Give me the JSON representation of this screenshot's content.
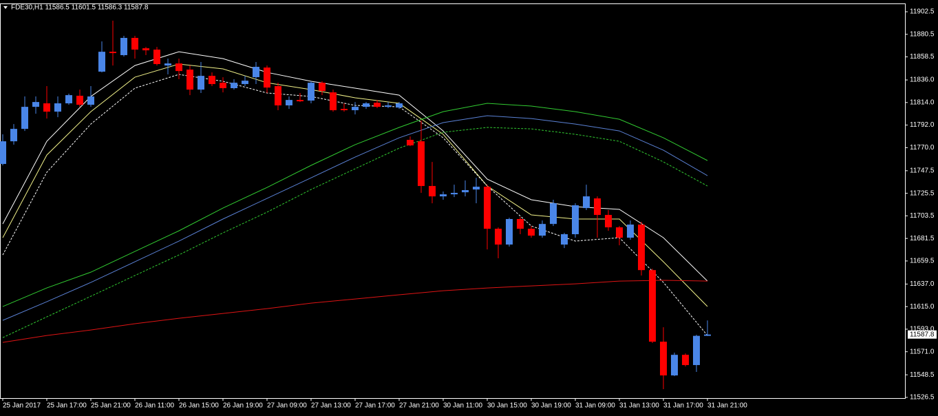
{
  "chart_data": {
    "type": "candlestick",
    "title": "FDE30,H1  11586.5 11601.5 11586.3 11587.8",
    "categories": [
      "25 Jan 2017",
      null,
      null,
      null,
      "25 Jan 17:00",
      null,
      null,
      null,
      "25 Jan 21:00",
      null,
      null,
      null,
      "26 Jan 11:00",
      null,
      null,
      null,
      "26 Jan 15:00",
      null,
      null,
      null,
      "26 Jan 19:00",
      null,
      null,
      null,
      "27 Jan 09:00",
      null,
      null,
      null,
      "27 Jan 13:00",
      null,
      null,
      null,
      "27 Jan 17:00",
      null,
      null,
      null,
      "27 Jan 21:00",
      null,
      null,
      null,
      "30 Jan 11:00",
      null,
      null,
      null,
      "30 Jan 15:00",
      null,
      null,
      null,
      "30 Jan 19:00",
      null,
      null,
      null,
      "31 Jan 09:00",
      null,
      null,
      null,
      "31 Jan 13:00",
      null,
      null,
      null,
      "31 Jan 17:00",
      null,
      null,
      null,
      "31 Jan 21:00"
    ],
    "open": [
      11754.1,
      11776.2,
      11788.3,
      11809.8,
      11813.2,
      11805.1,
      11813.2,
      11820.6,
      11811.8,
      11844.1,
      11863.5,
      11860.2,
      11877.0,
      11866.9,
      11865.6,
      11850.1,
      11852.1,
      11846.1,
      11826.6,
      11840.0,
      11833.3,
      11828.0,
      11832.0,
      11838.7,
      11848.1,
      11830.0,
      11811.2,
      11816.5,
      11815.9,
      11833.3,
      11823.9,
      11807.8,
      11806.5,
      11809.8,
      11813.8,
      11809.8,
      11809.1,
      11777.6,
      11776.2,
      11732.6,
      11722.5,
      11724.5,
      11726.5,
      11729.2,
      11731.9,
      11690.9,
      11675.5,
      11700.4,
      11690.9,
      11684.2,
      11695.6,
      11675.5,
      11685.6,
      11711.1,
      11720.5,
      11704.4,
      11692.3,
      11682.2,
      11695.0,
      11650.6,
      11580.8,
      11547.9,
      11568.0,
      11558.0,
      11586.5
    ],
    "high": [
      11783.0,
      11793.0,
      11819.9,
      11819.9,
      11830.0,
      11819.9,
      11822.6,
      11826.6,
      11830.0,
      11873.6,
      11893.8,
      11879.0,
      11879.0,
      11868.2,
      11868.2,
      11856.8,
      11856.8,
      11850.1,
      11853.5,
      11843.4,
      11838.7,
      11836.7,
      11840.0,
      11853.5,
      11850.1,
      11833.3,
      11819.9,
      11823.3,
      11834.7,
      11834.7,
      11826.6,
      11813.2,
      11814.5,
      11814.5,
      11816.5,
      11814.5,
      11814.5,
      11780.9,
      11796.4,
      11756.1,
      11727.2,
      11733.9,
      11738.0,
      11740.6,
      11733.9,
      11692.3,
      11701.7,
      11702.4,
      11693.6,
      11699.0,
      11719.2,
      11686.9,
      11715.8,
      11733.9,
      11722.5,
      11709.1,
      11693.6,
      11699.0,
      11697.7,
      11652.0,
      11594.9,
      11570.1,
      11569.4,
      11587.5,
      11601.5
    ],
    "low": [
      11752.7,
      11772.9,
      11786.3,
      11803.1,
      11798.4,
      11799.7,
      11811.8,
      11809.8,
      11809.8,
      11843.4,
      11850.1,
      11858.8,
      11856.8,
      11860.2,
      11850.1,
      11841.4,
      11836.7,
      11821.2,
      11823.3,
      11830.0,
      11823.9,
      11826.6,
      11830.0,
      11832.0,
      11823.3,
      11806.5,
      11807.8,
      11814.5,
      11813.2,
      11821.2,
      11805.1,
      11805.1,
      11802.4,
      11807.8,
      11808.5,
      11808.5,
      11807.8,
      11771.5,
      11725.9,
      11715.8,
      11719.2,
      11721.8,
      11722.5,
      11715.8,
      11670.8,
      11662.1,
      11673.5,
      11685.6,
      11682.2,
      11682.2,
      11693.6,
      11672.1,
      11682.2,
      11709.1,
      11682.2,
      11688.9,
      11674.8,
      11680.2,
      11645.3,
      11579.5,
      11534.5,
      11547.2,
      11556.6,
      11551.3,
      11586.3
    ],
    "close": [
      11776.2,
      11788.3,
      11809.8,
      11814.5,
      11805.1,
      11813.2,
      11821.2,
      11811.8,
      11819.9,
      11863.5,
      11862.2,
      11877.0,
      11865.6,
      11864.9,
      11851.5,
      11852.1,
      11844.7,
      11826.6,
      11840.0,
      11832.0,
      11828.0,
      11833.3,
      11835.3,
      11848.8,
      11828.6,
      11811.2,
      11816.5,
      11815.2,
      11833.3,
      11825.3,
      11806.5,
      11806.5,
      11809.8,
      11813.2,
      11809.8,
      11811.2,
      11813.2,
      11772.2,
      11732.6,
      11722.5,
      11724.5,
      11725.9,
      11728.6,
      11731.9,
      11690.9,
      11675.5,
      11700.4,
      11690.9,
      11684.2,
      11695.6,
      11715.8,
      11685.6,
      11713.8,
      11722.5,
      11704.4,
      11692.3,
      11682.2,
      11695.0,
      11650.6,
      11580.8,
      11547.9,
      11568.0,
      11558.0,
      11586.5,
      11587.8
    ],
    "up_color": "#4a86e8",
    "down_color": "#ff0000",
    "overlay_x": [
      0,
      4,
      8,
      12,
      16,
      20,
      24,
      28,
      32,
      36,
      40,
      44,
      48,
      52,
      56,
      60,
      64
    ],
    "overlays": [
      {
        "color": "#ffffff",
        "dashed": false,
        "values": [
          11695.6,
          11776.2,
          11819.9,
          11850.1,
          11863.5,
          11856.8,
          11843.4,
          11834.7,
          11828.0,
          11821.2,
          11786.3,
          11739.3,
          11719.2,
          11712.4,
          11709.8,
          11682.2,
          11639.9
        ]
      },
      {
        "color": "#f2f28a",
        "dashed": false,
        "values": [
          11682.2,
          11762.8,
          11805.1,
          11838.7,
          11851.5,
          11846.8,
          11833.3,
          11826.6,
          11818.6,
          11813.2,
          11783.0,
          11732.6,
          11704.4,
          11700.4,
          11700.4,
          11658.7,
          11615.1
        ]
      },
      {
        "color": "#ffffff",
        "dashed": true,
        "values": [
          11665.4,
          11746.0,
          11793.0,
          11828.0,
          11841.4,
          11834.7,
          11823.3,
          11819.9,
          11811.2,
          11809.8,
          11779.6,
          11732.6,
          11693.6,
          11678.9,
          11682.2,
          11638.6,
          11586.8
        ]
      },
      {
        "color": "#32cd32",
        "dashed": false,
        "values": [
          11615.1,
          11633.2,
          11648.6,
          11668.8,
          11688.9,
          11711.1,
          11731.2,
          11752.7,
          11772.9,
          11789.7,
          11805.1,
          11813.2,
          11810.5,
          11805.1,
          11797.7,
          11779.6,
          11757.4
        ]
      },
      {
        "color": "#5b82d6",
        "dashed": false,
        "values": [
          11601.6,
          11619.8,
          11638.6,
          11658.7,
          11678.9,
          11700.4,
          11720.5,
          11740.6,
          11760.8,
          11779.6,
          11794.4,
          11801.1,
          11798.4,
          11793.0,
          11786.3,
          11767.5,
          11742.7
        ]
      },
      {
        "color": "#32cd32",
        "dashed": true,
        "values": [
          11584.8,
          11605.0,
          11625.1,
          11645.3,
          11665.4,
          11686.9,
          11707.1,
          11729.2,
          11749.4,
          11769.5,
          11785.0,
          11789.7,
          11788.3,
          11783.0,
          11776.2,
          11756.1,
          11732.6
        ]
      },
      {
        "color": "#e01414",
        "dashed": false,
        "values": [
          11580.1,
          11586.8,
          11592.2,
          11598.3,
          11603.6,
          11608.3,
          11613.0,
          11618.4,
          11622.4,
          11626.5,
          11630.5,
          11633.2,
          11635.2,
          11637.2,
          11639.9,
          11640.6,
          11639.9
        ]
      }
    ],
    "current_price": 11587.8,
    "ylim": [
      11525.8,
      11910.6
    ],
    "yticks": [
      11902.5,
      11880.5,
      11858.5,
      {
        "value": 11836,
        "label": "11836.0"
      },
      {
        "value": 11814,
        "label": "11814.0"
      },
      {
        "value": 11792,
        "label": "11792.0"
      },
      {
        "value": 11770,
        "label": "11770.0"
      },
      11747.5,
      11725.5,
      11703.5,
      11681.5,
      11659.5,
      {
        "value": 11637,
        "label": "11637.0"
      },
      {
        "value": 11615,
        "label": "11615.0"
      },
      {
        "value": 11593,
        "label": "11593.0"
      },
      {
        "value": 11571,
        "label": "11571.0"
      },
      11548.5,
      11526.5
    ],
    "grid": false
  }
}
